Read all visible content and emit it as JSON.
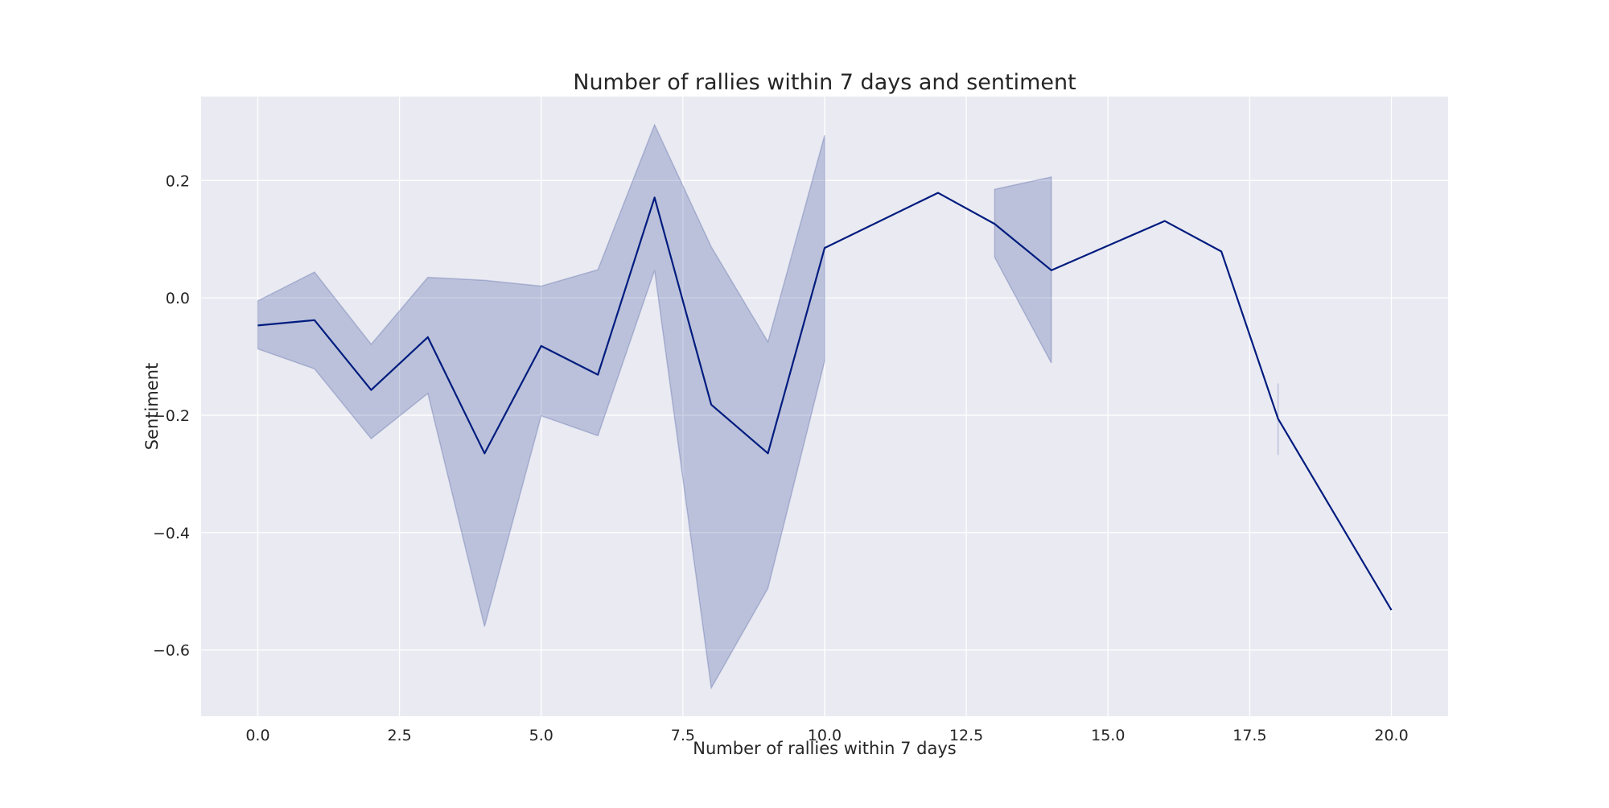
{
  "chart_data": {
    "type": "line",
    "title": "Number of rallies within 7 days and sentiment",
    "xlabel": "Number of rallies within 7 days",
    "ylabel": "Sentiment",
    "xlim": [
      -1.0,
      21.0
    ],
    "ylim": [
      -0.713,
      0.343
    ],
    "xticks": [
      0.0,
      2.5,
      5.0,
      7.5,
      10.0,
      12.5,
      15.0,
      17.5,
      20.0
    ],
    "xtick_labels": [
      "0.0",
      "2.5",
      "5.0",
      "7.5",
      "10.0",
      "12.5",
      "15.0",
      "17.5",
      "20.0"
    ],
    "yticks": [
      -0.6,
      -0.4,
      -0.2,
      0.0,
      0.2
    ],
    "ytick_labels": [
      "−0.6",
      "−0.4",
      "−0.2",
      "0.0",
      "0.2"
    ],
    "grid": true,
    "legend": "none",
    "colors": {
      "line": "#001c7f",
      "band": "#001c7f",
      "plot_background": "#eaeaf2",
      "grid": "#ffffff"
    },
    "series": [
      {
        "x": [
          0,
          1,
          2,
          3,
          4,
          5,
          6,
          7,
          8,
          9,
          10,
          12,
          13,
          14,
          16,
          17,
          18,
          20
        ],
        "y": [
          -0.047,
          -0.038,
          -0.157,
          -0.067,
          -0.265,
          -0.082,
          -0.131,
          0.171,
          -0.182,
          -0.265,
          0.085,
          0.179,
          0.126,
          0.047,
          0.131,
          0.079,
          -0.206,
          -0.532
        ]
      }
    ],
    "confidence_bands": [
      {
        "x": [
          0,
          1,
          2,
          3,
          4,
          5,
          6,
          7,
          8,
          9,
          10
        ],
        "lower": [
          -0.087,
          -0.121,
          -0.24,
          -0.163,
          -0.56,
          -0.201,
          -0.235,
          0.047,
          -0.665,
          -0.495,
          -0.108
        ],
        "upper": [
          -0.005,
          0.044,
          -0.079,
          0.035,
          0.03,
          0.02,
          0.048,
          0.295,
          0.087,
          -0.075,
          0.277
        ]
      },
      {
        "x": [
          13,
          14
        ],
        "lower": [
          0.069,
          -0.111
        ],
        "upper": [
          0.185,
          0.206
        ]
      },
      {
        "x": [
          18,
          18
        ],
        "lower": [
          -0.268,
          -0.268
        ],
        "upper": [
          -0.146,
          -0.146
        ]
      }
    ]
  }
}
